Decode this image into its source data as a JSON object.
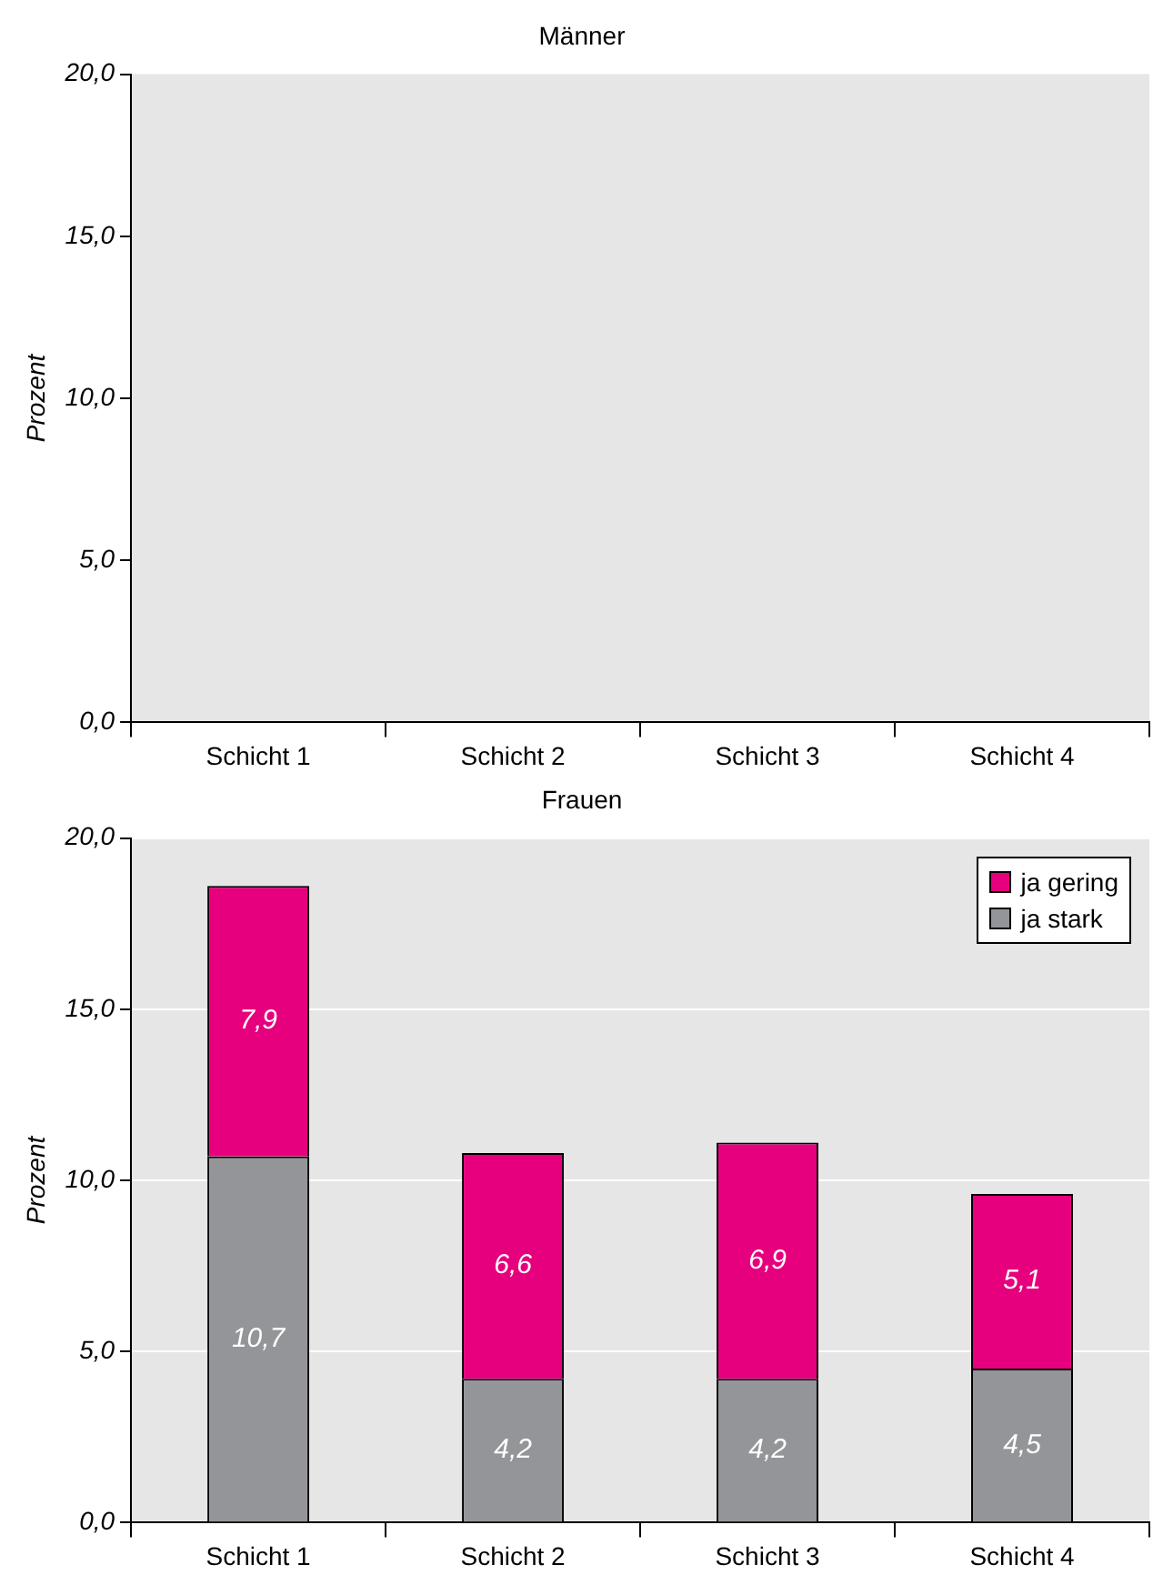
{
  "chart_data": [
    {
      "type": "bar",
      "title": "Männer",
      "ylabel": "Prozent",
      "categories": [
        "Schicht 1",
        "Schicht 2",
        "Schicht 3",
        "Schicht 4"
      ],
      "values": [
        null,
        null,
        null,
        null
      ],
      "ylim": [
        0,
        20
      ],
      "yticks": [
        {
          "value": 0,
          "label": "0,0"
        },
        {
          "value": 5,
          "label": "5,0"
        },
        {
          "value": 10,
          "label": "10,0"
        },
        {
          "value": 15,
          "label": "15,0"
        },
        {
          "value": 20,
          "label": "20,0"
        }
      ],
      "grid": false,
      "legend": false
    },
    {
      "type": "bar",
      "title": "Frauen",
      "ylabel": "Prozent",
      "categories": [
        "Schicht 1",
        "Schicht 2",
        "Schicht 3",
        "Schicht 4"
      ],
      "stacked": true,
      "series": [
        {
          "name": "ja stark",
          "color": "#939598",
          "values": [
            10.7,
            4.2,
            4.2,
            4.5
          ],
          "value_labels": [
            "10,7",
            "4,2",
            "4,2",
            "4,5"
          ]
        },
        {
          "name": "ja gering",
          "color": "#e6007e",
          "values": [
            7.9,
            6.6,
            6.9,
            5.1
          ],
          "value_labels": [
            "7,9",
            "6,6",
            "6,9",
            "5,1"
          ]
        }
      ],
      "ylim": [
        0,
        20
      ],
      "yticks": [
        {
          "value": 0,
          "label": "0,0"
        },
        {
          "value": 5,
          "label": "5,0"
        },
        {
          "value": 10,
          "label": "10,0"
        },
        {
          "value": 15,
          "label": "15,0"
        },
        {
          "value": 20,
          "label": "20,0"
        }
      ],
      "grid": "y",
      "legend": "top right"
    }
  ]
}
